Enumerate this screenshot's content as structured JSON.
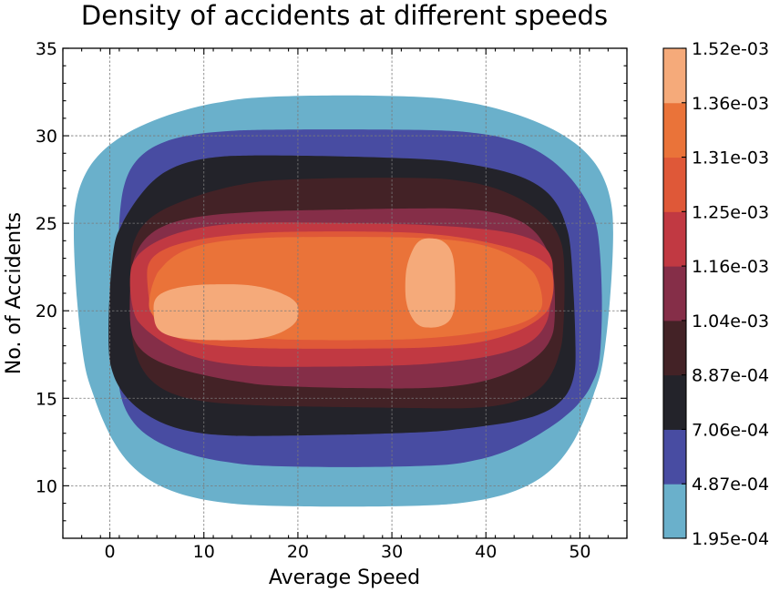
{
  "chart_data": {
    "type": "contour",
    "title": "Density of accidents at different speeds",
    "xlabel": "Average Speed",
    "ylabel": "No. of Accidents",
    "xlim": [
      -5,
      55
    ],
    "ylim": [
      7,
      35
    ],
    "xticks": [
      0,
      10,
      20,
      30,
      40,
      50
    ],
    "yticks": [
      10,
      15,
      20,
      25,
      30,
      35
    ],
    "grid": true,
    "colorbar": {
      "levels": [
        "1.95e-04",
        "4.87e-04",
        "7.06e-04",
        "8.87e-04",
        "1.04e-03",
        "1.16e-03",
        "1.25e-03",
        "1.31e-03",
        "1.36e-03",
        "1.52e-03"
      ],
      "colors": [
        "#6ab0cb",
        "#484ca2",
        "#23232a",
        "#432226",
        "#852e48",
        "#c13942",
        "#df5838",
        "#ea7339",
        "#f5aa7a"
      ]
    },
    "density_bands": [
      {
        "level": "1.95e-04",
        "color": "#6ab0cb",
        "x": [
          -3.5,
          53.2
        ],
        "y": [
          8.9,
          32.4
        ]
      },
      {
        "level": "4.87e-04",
        "color": "#484ca2",
        "x": [
          0,
          51.5
        ],
        "y": [
          11.2,
          30.5
        ]
      },
      {
        "level": "7.06e-04",
        "color": "#23232a",
        "x": [
          0,
          49.4
        ],
        "y": [
          12.8,
          28.7
        ]
      },
      {
        "level": "8.87e-04",
        "color": "#432226",
        "x": [
          2.4,
          48.6
        ],
        "y": [
          14.3,
          27.4
        ]
      },
      {
        "level": "1.04e-03",
        "color": "#852e48",
        "x": [
          2.4,
          47.6
        ],
        "y": [
          15.7,
          25.9
        ]
      },
      {
        "level": "1.16e-03",
        "color": "#c13942",
        "x": [
          2.4,
          47.2
        ],
        "y": [
          16.9,
          25.1
        ]
      },
      {
        "level": "1.25e-03",
        "color": "#df5838",
        "x": [
          3.4,
          46.5
        ],
        "y": [
          17.8,
          24.5
        ]
      },
      {
        "level": "1.31e-03",
        "color": "#ea7339",
        "x": [
          4.2,
          45.6
        ],
        "y": [
          18.3,
          24.2
        ]
      },
      {
        "level": "1.36e-03",
        "color": "#f5aa7a",
        "x": [
          4.4,
          37.2
        ],
        "y": [
          18.3,
          24.1
        ],
        "peaks": [
          {
            "x": [
              4.4,
              19.8
            ],
            "y": [
              18.3,
              21.5
            ]
          },
          {
            "x": [
              31.5,
              36.8
            ],
            "y": [
              19.0,
              24.1
            ]
          }
        ]
      }
    ]
  }
}
